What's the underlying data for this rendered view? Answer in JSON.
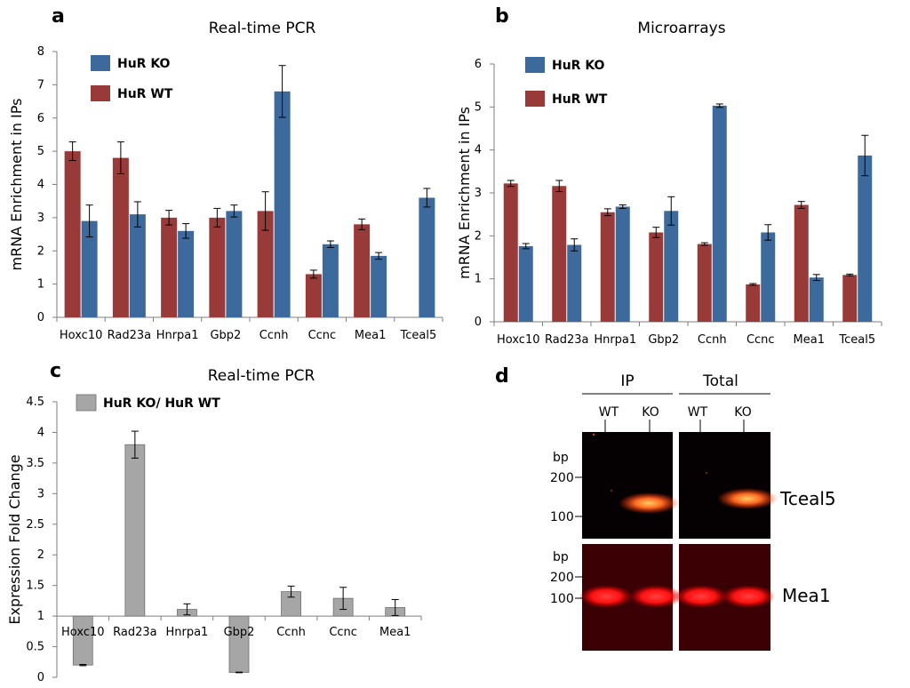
{
  "panels": {
    "a": "a",
    "b": "b",
    "c": "c",
    "d": "d"
  },
  "colors": {
    "ko": "#3d6a9c",
    "wt": "#983a38",
    "ratio": "#a6a6a6"
  },
  "chart_data": [
    {
      "id": "a",
      "type": "bar",
      "title": "Real-time PCR",
      "ylabel": "mRNA Enrichment in IPs",
      "xlabel": "",
      "ylim": [
        0,
        8
      ],
      "yticks": [
        0,
        1,
        2,
        3,
        4,
        5,
        6,
        7,
        8
      ],
      "categories": [
        "Hoxc10",
        "Rad23a",
        "Hnrpa1",
        "Gbp2",
        "Ccnh",
        "Ccnc",
        "Mea1",
        "Tceal5"
      ],
      "legend_position": "top-left",
      "series": [
        {
          "name": "HuR WT",
          "color_key": "wt",
          "values": [
            5.0,
            4.8,
            3.0,
            3.0,
            3.2,
            1.3,
            2.8,
            null
          ],
          "errors": [
            0.28,
            0.48,
            0.22,
            0.28,
            0.58,
            0.12,
            0.16,
            null
          ]
        },
        {
          "name": "HuR KO",
          "color_key": "ko",
          "values": [
            2.9,
            3.1,
            2.6,
            3.2,
            6.8,
            2.2,
            1.85,
            3.6
          ],
          "errors": [
            0.48,
            0.38,
            0.22,
            0.18,
            0.78,
            0.1,
            0.1,
            0.28
          ]
        }
      ],
      "legend_order": [
        "HuR KO",
        "HuR WT"
      ]
    },
    {
      "id": "b",
      "type": "bar",
      "title": "Microarrays",
      "ylabel": "mRNA Enrichment in IPs",
      "xlabel": "",
      "ylim": [
        0,
        6
      ],
      "yticks": [
        0,
        1,
        2,
        3,
        4,
        5,
        6
      ],
      "categories": [
        "Hoxc10",
        "Rad23a",
        "Hnrpa1",
        "Gbp2",
        "Ccnh",
        "Ccnc",
        "Mea1",
        "Tceal5"
      ],
      "legend_position": "top-left",
      "series": [
        {
          "name": "HuR WT",
          "color_key": "wt",
          "values": [
            3.22,
            3.16,
            2.55,
            2.08,
            1.81,
            0.87,
            2.72,
            1.09
          ],
          "errors": [
            0.07,
            0.13,
            0.08,
            0.12,
            0.03,
            0.02,
            0.08,
            0.02
          ]
        },
        {
          "name": "HuR KO",
          "color_key": "ko",
          "values": [
            1.76,
            1.79,
            2.68,
            2.58,
            5.03,
            2.08,
            1.03,
            3.87
          ],
          "errors": [
            0.06,
            0.14,
            0.04,
            0.33,
            0.04,
            0.18,
            0.07,
            0.47
          ]
        }
      ],
      "legend_order": [
        "HuR KO",
        "HuR WT"
      ]
    },
    {
      "id": "c",
      "type": "bar",
      "title": "Real-time PCR",
      "ylabel": "Expression Fold Change",
      "xlabel": "",
      "ylim": [
        0,
        4.5
      ],
      "baseline": 1,
      "yticks": [
        0,
        0.5,
        1,
        1.5,
        2,
        2.5,
        3,
        3.5,
        4,
        4.5
      ],
      "ytick_labels": [
        "0",
        "0.5",
        "1",
        "1.5",
        "2",
        "2.5",
        "3",
        "3.5",
        "4",
        "4.5"
      ],
      "categories": [
        "Hoxc10",
        "Rad23a",
        "Hnrpa1",
        "Gbp2",
        "Ccnh",
        "Ccnc",
        "Mea1"
      ],
      "legend_position": "top-left",
      "series": [
        {
          "name": "HuR KO/ HuR WT",
          "color_key": "ratio",
          "values": [
            0.2,
            3.8,
            1.11,
            0.08,
            1.4,
            1.29,
            1.14
          ],
          "errors": [
            0.01,
            0.22,
            0.09,
            0.005,
            0.09,
            0.18,
            0.13
          ]
        }
      ]
    }
  ],
  "gel": {
    "group_ip": "IP",
    "group_total": "Total",
    "lane_wt": "WT",
    "lane_ko": "KO",
    "bp_label": "bp",
    "marker_200": "200",
    "marker_100": "100",
    "gene_top": "Tceal5",
    "gene_bottom": "Mea1"
  }
}
